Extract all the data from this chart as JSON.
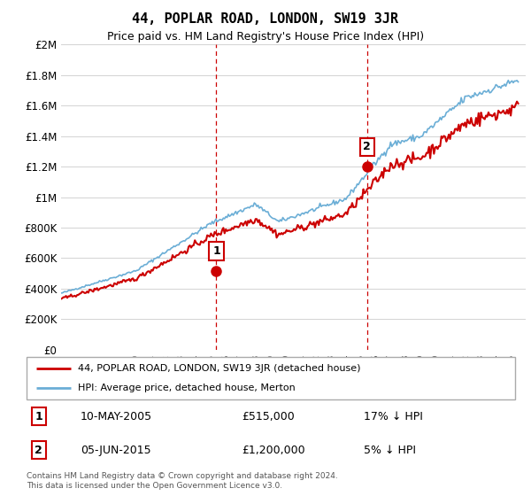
{
  "title": "44, POPLAR ROAD, LONDON, SW19 3JR",
  "subtitle": "Price paid vs. HM Land Registry's House Price Index (HPI)",
  "hpi_color": "#6baed6",
  "price_color": "#cc0000",
  "marker_color": "#cc0000",
  "vline_color": "#cc0000",
  "ylim": [
    0,
    2000000
  ],
  "yticks": [
    0,
    200000,
    400000,
    600000,
    800000,
    1000000,
    1200000,
    1400000,
    1600000,
    1800000,
    2000000
  ],
  "ytick_labels": [
    "£0",
    "£200K",
    "£400K",
    "£600K",
    "£800K",
    "£1M",
    "£1.2M",
    "£1.4M",
    "£1.6M",
    "£1.8M",
    "£2M"
  ],
  "sale1_year": 2005.36,
  "sale1_price": 515000,
  "sale1_label": "1",
  "sale2_year": 2015.42,
  "sale2_price": 1200000,
  "sale2_label": "2",
  "legend_line1": "44, POPLAR ROAD, LONDON, SW19 3JR (detached house)",
  "legend_line2": "HPI: Average price, detached house, Merton",
  "table_row1_num": "1",
  "table_row1_date": "10-MAY-2005",
  "table_row1_price": "£515,000",
  "table_row1_hpi": "17% ↓ HPI",
  "table_row2_num": "2",
  "table_row2_date": "05-JUN-2015",
  "table_row2_price": "£1,200,000",
  "table_row2_hpi": "5% ↓ HPI",
  "footnote": "Contains HM Land Registry data © Crown copyright and database right 2024.\nThis data is licensed under the Open Government Licence v3.0.",
  "xstart": 1995,
  "xend": 2026
}
